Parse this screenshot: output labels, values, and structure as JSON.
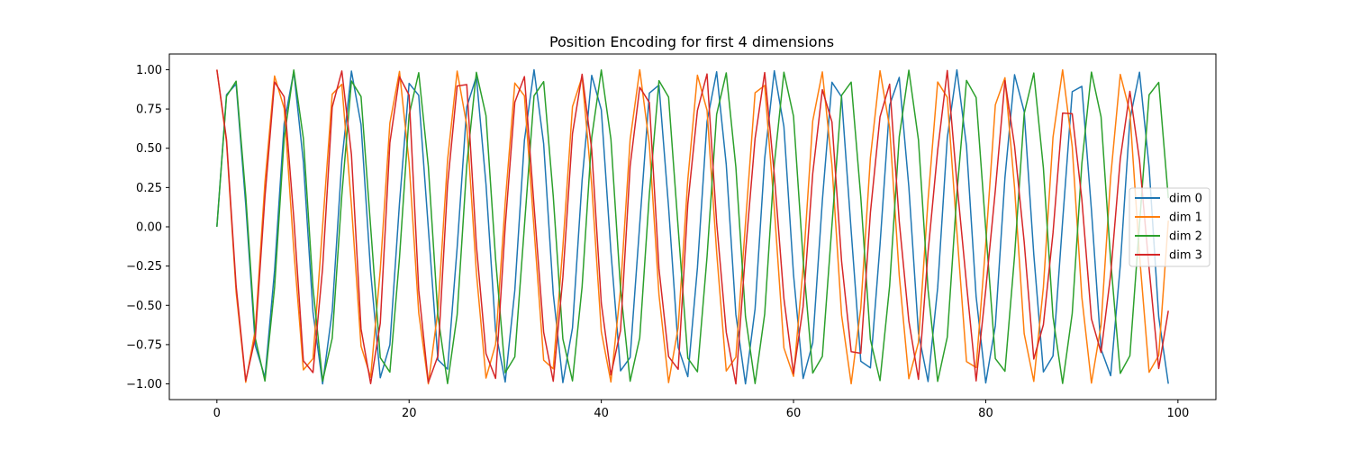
{
  "chart_data": {
    "type": "line",
    "title": "Position Encoding for first 4 dimensions",
    "xlabel": "",
    "ylabel": "",
    "xlim": [
      -4.95,
      103.95
    ],
    "ylim": [
      -1.1,
      1.1
    ],
    "x_ticks": [
      0,
      20,
      40,
      60,
      80,
      100
    ],
    "y_ticks": [
      -1.0,
      -0.75,
      -0.5,
      -0.25,
      0.0,
      0.25,
      0.5,
      0.75,
      1.0
    ],
    "y_tick_labels": [
      "−1.00",
      "−0.75",
      "−0.50",
      "−0.25",
      "0.00",
      "0.25",
      "0.50",
      "0.75",
      "1.00"
    ],
    "grid": false,
    "legend_placement": "center-right",
    "x": [
      0,
      1,
      2,
      3,
      4,
      5,
      6,
      7,
      8,
      9,
      10,
      11,
      12,
      13,
      14,
      15,
      16,
      17,
      18,
      19,
      20,
      21,
      22,
      23,
      24,
      25,
      26,
      27,
      28,
      29,
      30,
      31,
      32,
      33,
      34,
      35,
      36,
      37,
      38,
      39,
      40,
      41,
      42,
      43,
      44,
      45,
      46,
      47,
      48,
      49,
      50,
      51,
      52,
      53,
      54,
      55,
      56,
      57,
      58,
      59,
      60,
      61,
      62,
      63,
      64,
      65,
      66,
      67,
      68,
      69,
      70,
      71,
      72,
      73,
      74,
      75,
      76,
      77,
      78,
      79,
      80,
      81,
      82,
      83,
      84,
      85,
      86,
      87,
      88,
      89,
      90,
      91,
      92,
      93,
      94,
      95,
      96,
      97,
      98,
      99
    ],
    "series": [
      {
        "name": "dim 0",
        "color": "#1f77b4",
        "values": [
          0.0,
          0.841,
          0.909,
          0.141,
          -0.757,
          -0.959,
          -0.279,
          0.657,
          0.989,
          0.412,
          -0.544,
          -1.0,
          -0.537,
          0.42,
          0.991,
          0.65,
          -0.288,
          -0.961,
          -0.751,
          0.15,
          0.913,
          0.837,
          -0.009,
          -0.846,
          -0.906,
          -0.132,
          0.763,
          0.956,
          0.271,
          -0.664,
          -0.988,
          -0.404,
          0.551,
          1.0,
          0.529,
          -0.428,
          -0.992,
          -0.644,
          0.296,
          0.964,
          0.745,
          -0.159,
          -0.917,
          -0.832,
          0.018,
          0.851,
          0.902,
          0.124,
          -0.768,
          -0.954,
          -0.262,
          0.67,
          0.987,
          0.396,
          -0.559,
          -1.0,
          -0.522,
          0.436,
          0.993,
          0.637,
          -0.305,
          -0.966,
          -0.739,
          0.167,
          0.92,
          0.827,
          -0.027,
          -0.856,
          -0.898,
          -0.115,
          0.774,
          0.951,
          0.254,
          -0.677,
          -0.985,
          -0.388,
          0.566,
          0.999,
          0.514,
          -0.444,
          -0.994,
          -0.63,
          0.313,
          0.968,
          0.733,
          -0.176,
          -0.924,
          -0.822,
          0.035,
          0.86,
          0.894,
          0.106,
          -0.779,
          -0.948,
          -0.245,
          0.683,
          0.984,
          0.38,
          -0.573,
          -0.999
        ]
      },
      {
        "name": "dim 1",
        "color": "#ff7f0e",
        "values": [
          1.0,
          0.54,
          -0.416,
          -0.99,
          -0.654,
          0.284,
          0.96,
          0.754,
          -0.146,
          -0.911,
          -0.839,
          0.004,
          0.844,
          0.907,
          0.137,
          -0.76,
          -0.958,
          -0.275,
          0.66,
          0.989,
          0.408,
          -0.548,
          -1.0,
          -0.533,
          0.424,
          0.991,
          0.647,
          -0.292,
          -0.963,
          -0.748,
          0.154,
          0.915,
          0.834,
          -0.013,
          -0.849,
          -0.904,
          -0.128,
          0.765,
          0.955,
          0.267,
          -0.667,
          -0.988,
          -0.4,
          0.555,
          1.0,
          0.525,
          -0.432,
          -0.992,
          -0.64,
          0.3,
          0.965,
          0.742,
          -0.163,
          -0.918,
          -0.83,
          0.022,
          0.853,
          0.9,
          0.119,
          -0.771,
          -0.952,
          -0.258,
          0.674,
          0.986,
          0.392,
          -0.562,
          -0.999,
          -0.518,
          0.44,
          0.993,
          0.633,
          -0.309,
          -0.967,
          -0.736,
          0.172,
          0.922,
          0.824,
          -0.031,
          -0.858,
          -0.896,
          -0.11,
          0.776,
          0.949,
          0.249,
          -0.68,
          -0.984,
          -0.384,
          0.57,
          0.999,
          0.51,
          -0.448,
          -0.995,
          -0.626,
          0.317,
          0.97,
          0.73,
          -0.18,
          -0.926,
          -0.819,
          0.04
        ]
      },
      {
        "name": "dim 2",
        "color": "#2ca02c",
        "values": [
          0.0,
          0.831,
          0.927,
          0.2,
          -0.711,
          -0.982,
          -0.387,
          0.564,
          0.998,
          0.562,
          -0.389,
          -0.982,
          -0.709,
          0.202,
          0.928,
          0.829,
          -0.003,
          -0.833,
          -0.925,
          -0.197,
          0.712,
          0.981,
          0.385,
          -0.566,
          -0.998,
          -0.56,
          0.392,
          0.983,
          0.708,
          -0.205,
          -0.929,
          -0.828,
          0.006,
          0.834,
          0.924,
          0.194,
          -0.714,
          -0.981,
          -0.382,
          0.568,
          0.998,
          0.558,
          -0.394,
          -0.983,
          -0.706,
          0.208,
          0.93,
          0.826,
          -0.009,
          -0.836,
          -0.923,
          -0.191,
          0.716,
          0.98,
          0.38,
          -0.57,
          -0.998,
          -0.555,
          0.397,
          0.984,
          0.704,
          -0.211,
          -0.931,
          -0.825,
          0.011,
          0.837,
          0.921,
          0.188,
          -0.718,
          -0.979,
          -0.377,
          0.572,
          0.997,
          0.553,
          -0.4,
          -0.984,
          -0.702,
          0.213,
          0.932,
          0.823,
          -0.014,
          -0.839,
          -0.92,
          -0.185,
          0.72,
          0.979,
          0.374,
          -0.574,
          -0.997,
          -0.551,
          0.402,
          0.985,
          0.7,
          -0.216,
          -0.933,
          -0.821,
          0.017,
          0.84,
          0.919,
          0.182
        ]
      },
      {
        "name": "dim 3",
        "color": "#d62728",
        "values": [
          1.0,
          0.556,
          -0.376,
          -0.98,
          -0.703,
          0.19,
          0.922,
          0.828,
          0.056,
          -0.853,
          -0.928,
          -0.263,
          0.762,
          0.992,
          0.46,
          -0.65,
          -0.998,
          -0.614,
          0.535,
          0.955,
          0.838,
          -0.403,
          -0.991,
          -0.822,
          0.266,
          0.896,
          0.905,
          -0.119,
          -0.807,
          -0.965,
          0.003,
          0.793,
          0.956,
          0.133,
          -0.671,
          -0.983,
          -0.322,
          0.593,
          0.971,
          0.493,
          -0.487,
          -0.943,
          -0.66,
          0.387,
          0.888,
          0.791,
          -0.267,
          -0.826,
          -0.907,
          0.144,
          0.74,
          0.973,
          0.026,
          -0.671,
          -1.0,
          -0.165,
          0.562,
          0.982,
          0.331,
          -0.457,
          -0.934,
          -0.507,
          0.339,
          0.873,
          0.667,
          -0.218,
          -0.795,
          -0.805,
          0.09,
          0.7,
          0.908,
          0.035,
          -0.6,
          -0.971,
          -0.161,
          0.487,
          0.995,
          0.282,
          -0.364,
          -0.981,
          -0.401,
          0.233,
          0.93,
          0.514,
          -0.096,
          -0.842,
          -0.623,
          -0.04,
          0.724,
          0.72,
          0.175,
          -0.586,
          -0.8,
          -0.304,
          0.432,
          0.862,
          0.424,
          -0.265,
          -0.902,
          -0.534
        ]
      }
    ]
  }
}
